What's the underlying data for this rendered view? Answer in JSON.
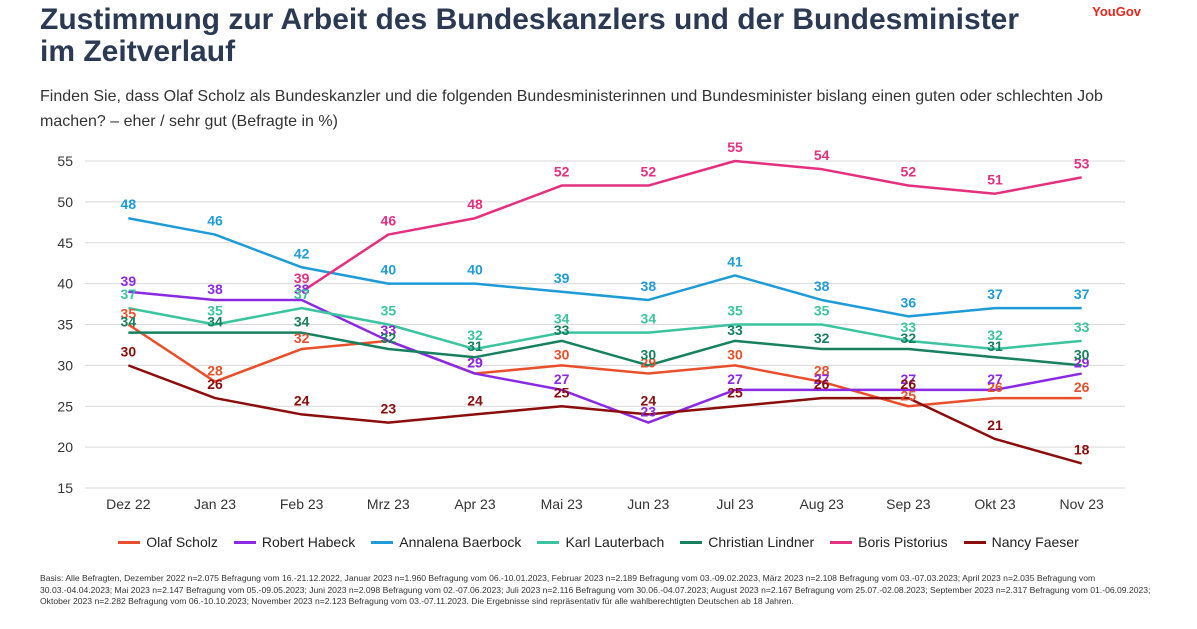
{
  "header": {
    "title": "Zustimmung zur Arbeit des Bundeskanzlers und der Bundesminister im Zeitverlauf",
    "logo": "YouGov",
    "subtitle": "Finden Sie, dass Olaf Scholz als Bundeskanzler und die folgenden Bundesministerinnen und Bundesminister bislang einen guten oder schlechten Job machen? – eher / sehr gut (Befragte in %)"
  },
  "footnote": "Basis: Alle Befragten, Dezember 2022 n=2.075 Befragung vom 16.-21.12.2022, Januar 2023 n=1.960 Befragung vom 06.-10.01.2023, Februar 2023 n=2.189 Befragung vom 03.-09.02.2023, März 2023 n=2.108 Befragung vom 03.-07.03.2023; April 2023 n=2.035 Befragung vom 30.03.-04.04.2023; Mai 2023 n=2.147 Befragung vom 05.-09.05.2023; Juni 2023 n=2.098 Befragung vom 02.-07.06.2023; Juli 2023 n=2.116 Befragung vom 30.06.-04.07.2023; August 2023 n=2.167 Befragung vom 25.07.-02.08.2023; September 2023 n=2.317 Befragung vom 01.-06.09.2023; Oktober 2023 n=2.282 Befragung vom 06.-10.10.2023; November 2023 n=2.123 Befragung vom 03.-07.11.2023. Die Ergebnisse sind repräsentativ für alle wahlberechtigten Deutschen ab 18 Jahren.",
  "chart_data": {
    "type": "line",
    "title": "Zustimmung zur Arbeit des Bundeskanzlers und der Bundesminister im Zeitverlauf",
    "xlabel": "",
    "ylabel": "Befragte in %",
    "ylim": [
      15,
      55
    ],
    "yticks": [
      15,
      20,
      25,
      30,
      35,
      40,
      45,
      50,
      55
    ],
    "grid": true,
    "legend_position": "bottom",
    "categories": [
      "Dez 22",
      "Jan 23",
      "Feb 23",
      "Mrz 23",
      "Apr 23",
      "Mai 23",
      "Jun 23",
      "Jul 23",
      "Aug 23",
      "Sep 23",
      "Okt 23",
      "Nov 23"
    ],
    "series": [
      {
        "name": "Olaf Scholz",
        "color": "#e8502b",
        "values": [
          35,
          28,
          32,
          33,
          29,
          30,
          29,
          30,
          28,
          25,
          26,
          26
        ],
        "labels_present": [
          true,
          true,
          true,
          true,
          true,
          true,
          true,
          true,
          true,
          true,
          true,
          true
        ]
      },
      {
        "name": "Robert Habeck",
        "color": "#8a2be2",
        "values": [
          39,
          38,
          38,
          33,
          29,
          27,
          23,
          27,
          27,
          27,
          27,
          29
        ]
      },
      {
        "name": "Annalena Baerbock",
        "color": "#1f9bd7",
        "values": [
          48,
          46,
          42,
          40,
          40,
          39,
          38,
          41,
          38,
          36,
          37,
          37
        ]
      },
      {
        "name": "Karl Lauterbach",
        "color": "#3cc4a0",
        "values": [
          37,
          35,
          37,
          35,
          32,
          34,
          34,
          35,
          35,
          33,
          32,
          33
        ]
      },
      {
        "name": "Christian Lindner",
        "color": "#17805f",
        "values": [
          34,
          34,
          34,
          32,
          31,
          33,
          30,
          33,
          32,
          32,
          31,
          30
        ]
      },
      {
        "name": "Boris Pistorius",
        "color": "#e3307f",
        "values": [
          null,
          null,
          39,
          46,
          48,
          52,
          52,
          55,
          54,
          52,
          51,
          53
        ]
      },
      {
        "name": "Nancy Faeser",
        "color": "#8b0d0d",
        "values": [
          30,
          26,
          24,
          23,
          24,
          25,
          24,
          25,
          26,
          26,
          21,
          18
        ]
      }
    ]
  }
}
